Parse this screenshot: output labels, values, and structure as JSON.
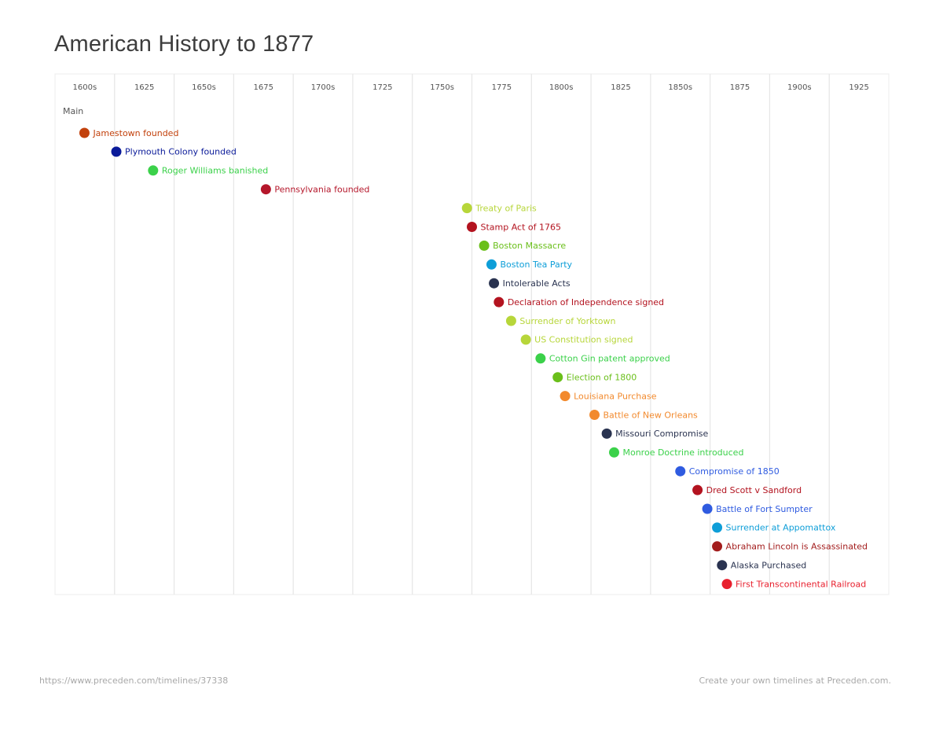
{
  "page": {
    "title": "American History to 1877"
  },
  "footer": {
    "url": "https://www.preceden.com/timelines/37338",
    "credit": "Create your own timelines at Preceden.com."
  },
  "chart_data": {
    "type": "timeline",
    "title": "American History to 1877",
    "x_ticks": [
      "1600s",
      "1625",
      "1650s",
      "1675",
      "1700s",
      "1725",
      "1750s",
      "1775",
      "1800s",
      "1825",
      "1850s",
      "1875",
      "1900s",
      "1925"
    ],
    "xlim": [
      1595,
      1935
    ],
    "grid": true,
    "lane": "Main",
    "events": [
      {
        "label": "Jamestown founded",
        "year": 1607,
        "color": "#c2410c"
      },
      {
        "label": "Plymouth Colony founded",
        "year": 1620,
        "color": "#0a1a99"
      },
      {
        "label": "Roger Williams banished",
        "year": 1635,
        "color": "#3bd14a"
      },
      {
        "label": "Pennsylvania founded",
        "year": 1681,
        "color": "#b5172b"
      },
      {
        "label": "Treaty of Paris",
        "year": 1763,
        "color": "#b7d63a"
      },
      {
        "label": "Stamp Act of 1765",
        "year": 1765,
        "color": "#b3131f"
      },
      {
        "label": "Boston Massacre",
        "year": 1770,
        "color": "#6abf1a"
      },
      {
        "label": "Boston Tea Party",
        "year": 1773,
        "color": "#0e9ed8"
      },
      {
        "label": "Intolerable Acts",
        "year": 1774,
        "color": "#2a3350"
      },
      {
        "label": "Declaration of Independence signed",
        "year": 1776,
        "color": "#b3131f"
      },
      {
        "label": "Surrender of Yorktown",
        "year": 1781,
        "color": "#b7d63a"
      },
      {
        "label": "US Constitution signed",
        "year": 1787,
        "color": "#b7d63a"
      },
      {
        "label": "Cotton Gin patent approved",
        "year": 1793,
        "color": "#3bd14a"
      },
      {
        "label": "Election of 1800",
        "year": 1800,
        "color": "#6abf1a"
      },
      {
        "label": "Louisiana Purchase",
        "year": 1803,
        "color": "#f28a2e"
      },
      {
        "label": "Battle of New Orleans",
        "year": 1815,
        "color": "#f28a2e"
      },
      {
        "label": "Missouri Compromise",
        "year": 1820,
        "color": "#2a3350"
      },
      {
        "label": "Monroe Doctrine introduced",
        "year": 1823,
        "color": "#3bd14a"
      },
      {
        "label": "Compromise of 1850",
        "year": 1850,
        "color": "#2f5be0"
      },
      {
        "label": "Dred Scott v Sandford",
        "year": 1857,
        "color": "#b3131f"
      },
      {
        "label": "Battle of Fort Sumpter",
        "year": 1861,
        "color": "#2f5be0"
      },
      {
        "label": "Surrender at Appomattox",
        "year": 1865,
        "color": "#0e9ed8"
      },
      {
        "label": "Abraham Lincoln is Assassinated",
        "year": 1865,
        "color": "#a31d1d"
      },
      {
        "label": "Alaska Purchased",
        "year": 1867,
        "color": "#2a3350"
      },
      {
        "label": "First Transcontinental Railroad",
        "year": 1869,
        "color": "#e8202e"
      }
    ]
  }
}
